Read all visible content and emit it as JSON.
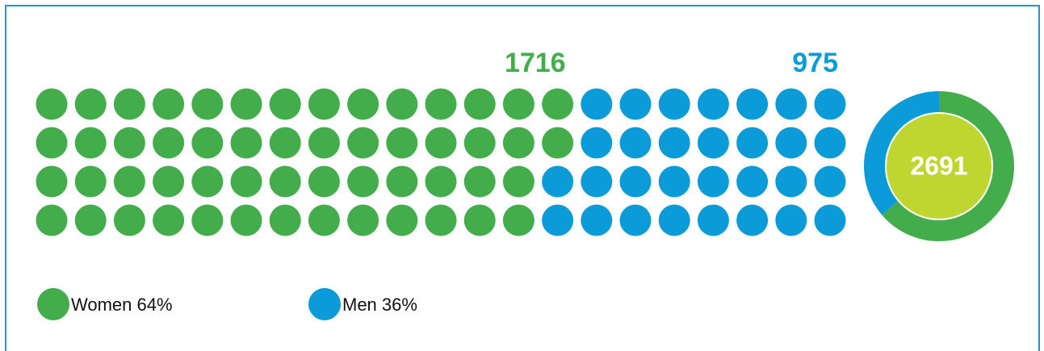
{
  "chart_data": {
    "type": "waffle",
    "series": [
      {
        "name": "Women 64%",
        "percent": 64,
        "value": 1716,
        "color": "#44ad4b"
      },
      {
        "name": "Men 36%",
        "percent": 36,
        "value": 975,
        "color": "#0b9bd8"
      }
    ],
    "total": 2691,
    "center_color": "#bfd631"
  }
}
